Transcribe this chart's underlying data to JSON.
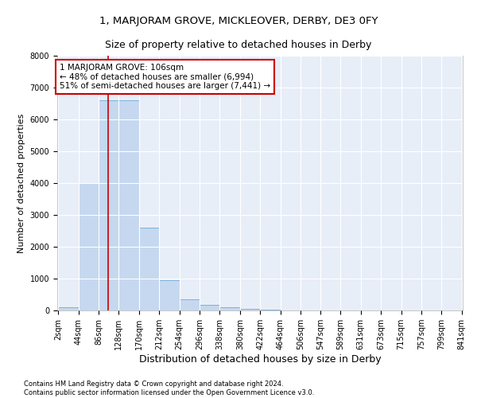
{
  "title": "1, MARJORAM GROVE, MICKLEOVER, DERBY, DE3 0FY",
  "subtitle": "Size of property relative to detached houses in Derby",
  "xlabel": "Distribution of detached houses by size in Derby",
  "ylabel": "Number of detached properties",
  "bar_color": "#c5d8ef",
  "bar_edge_color": "#6aabda",
  "background_color": "#e8eef8",
  "grid_color": "white",
  "bin_edges": [
    2,
    44,
    86,
    128,
    170,
    212,
    254,
    296,
    338,
    380,
    422,
    464,
    506,
    547,
    589,
    631,
    673,
    715,
    757,
    799,
    841
  ],
  "bar_heights": [
    100,
    4000,
    6600,
    6600,
    2600,
    950,
    350,
    175,
    100,
    55,
    15,
    5,
    3,
    2,
    1,
    1,
    0,
    0,
    0,
    0
  ],
  "property_size": 106,
  "red_line_color": "#cc0000",
  "annotation_text": "1 MARJORAM GROVE: 106sqm\n← 48% of detached houses are smaller (6,994)\n51% of semi-detached houses are larger (7,441) →",
  "annotation_box_color": "white",
  "annotation_box_edge": "#cc0000",
  "ylim": [
    0,
    8000
  ],
  "yticks": [
    0,
    1000,
    2000,
    3000,
    4000,
    5000,
    6000,
    7000,
    8000
  ],
  "footer": "Contains HM Land Registry data © Crown copyright and database right 2024.\nContains public sector information licensed under the Open Government Licence v3.0.",
  "title_fontsize": 9.5,
  "subtitle_fontsize": 9,
  "xlabel_fontsize": 9,
  "ylabel_fontsize": 8,
  "tick_fontsize": 7,
  "annotation_fontsize": 7.5,
  "footer_fontsize": 6
}
